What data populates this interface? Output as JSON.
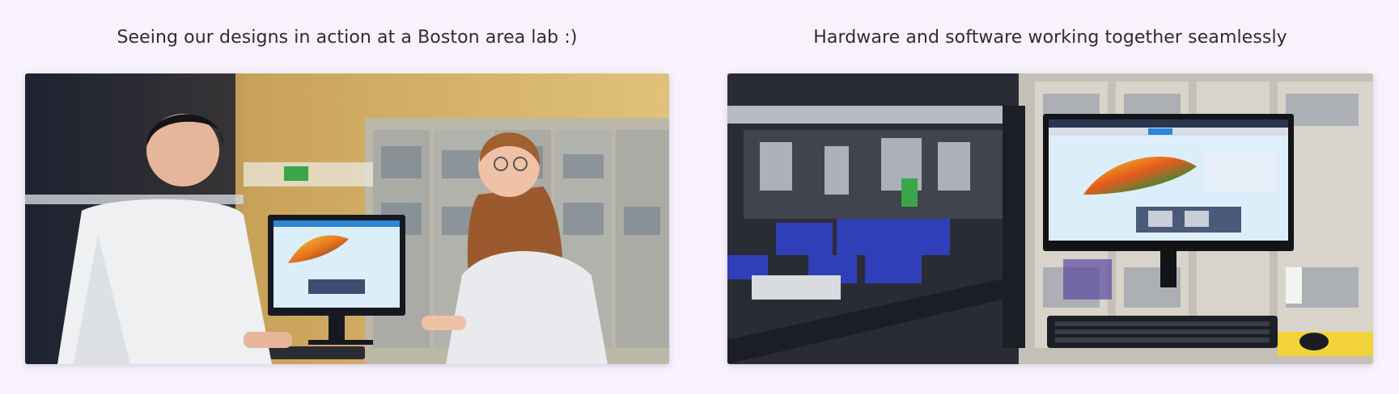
{
  "panels": [
    {
      "caption": "Seeing our designs in action at a Boston area lab :)",
      "photo_subject": "two-scientists-with-monitor"
    },
    {
      "caption": "Hardware and software working together seamlessly",
      "photo_subject": "lab-robot-with-monitor"
    }
  ],
  "colors": {
    "background": "#f8f2fd",
    "caption_text": "#2d2d33",
    "monitor_screen": "#dceefa",
    "ui_accent": "#2b86d6"
  }
}
